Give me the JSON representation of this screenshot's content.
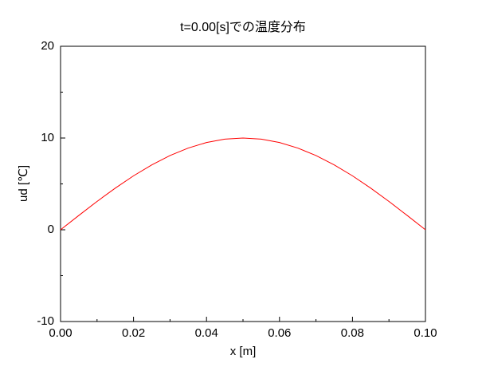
{
  "chart_data": {
    "type": "line",
    "title": "t=0.00[s]での温度分布",
    "xlabel": "x [m]",
    "ylabel": "ud [℃]",
    "x": [
      0,
      0.005,
      0.01,
      0.015,
      0.02,
      0.025,
      0.03,
      0.035,
      0.04,
      0.045,
      0.05,
      0.055,
      0.06,
      0.065,
      0.07,
      0.075,
      0.08,
      0.085,
      0.09,
      0.095,
      0.1
    ],
    "series": [
      {
        "name": "ud",
        "color": "#ff0000",
        "values": [
          0,
          1.56,
          3.09,
          4.54,
          5.88,
          7.07,
          8.09,
          8.91,
          9.51,
          9.88,
          10,
          9.88,
          9.51,
          8.91,
          8.09,
          7.07,
          5.88,
          4.54,
          3.09,
          1.56,
          0
        ]
      }
    ],
    "xlim": [
      0,
      0.1
    ],
    "xticks": [
      {
        "value": 0,
        "label": "0.00"
      },
      {
        "value": 0.02,
        "label": "0.02"
      },
      {
        "value": 0.04,
        "label": "0.04"
      },
      {
        "value": 0.06,
        "label": "0.06"
      },
      {
        "value": 0.08,
        "label": "0.08"
      },
      {
        "value": 0.1,
        "label": "0.10"
      }
    ],
    "xminorticks": [
      0.01,
      0.03,
      0.05,
      0.07,
      0.09
    ],
    "ylim": [
      -10,
      20
    ],
    "yticks": [
      -10,
      0,
      10,
      20
    ],
    "yminorticks": [
      -5,
      5,
      15
    ]
  }
}
